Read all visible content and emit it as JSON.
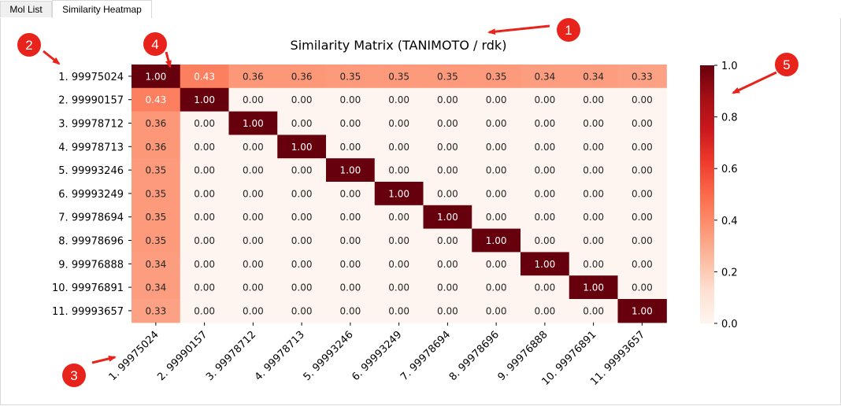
{
  "tabs": [
    {
      "label": "Mol List",
      "active": false
    },
    {
      "label": "Similarity Heatmap",
      "active": true
    }
  ],
  "colors": {
    "annotation": "#e8231b",
    "low": "#fff5f0",
    "high": "#67000d"
  },
  "annotations": [
    "1",
    "2",
    "3",
    "4",
    "5"
  ],
  "chart_data": {
    "type": "heatmap",
    "title": "Similarity Matrix (TANIMOTO / rdk)",
    "row_labels": [
      "1. 99975024",
      "2. 99990157",
      "3. 99978712",
      "4. 99978713",
      "5. 99993246",
      "6. 99993249",
      "7. 99978694",
      "8. 99978696",
      "9. 99976888",
      "10. 99976891",
      "11. 99993657"
    ],
    "col_labels": [
      "1. 99975024",
      "2. 99990157",
      "3. 99978712",
      "4. 99978713",
      "5. 99993246",
      "6. 99993249",
      "7. 99978694",
      "8. 99978696",
      "9. 99976888",
      "10. 99976891",
      "11. 99993657"
    ],
    "values": [
      [
        1.0,
        0.43,
        0.36,
        0.36,
        0.35,
        0.35,
        0.35,
        0.35,
        0.34,
        0.34,
        0.33
      ],
      [
        0.43,
        1.0,
        0.0,
        0.0,
        0.0,
        0.0,
        0.0,
        0.0,
        0.0,
        0.0,
        0.0
      ],
      [
        0.36,
        0.0,
        1.0,
        0.0,
        0.0,
        0.0,
        0.0,
        0.0,
        0.0,
        0.0,
        0.0
      ],
      [
        0.36,
        0.0,
        0.0,
        1.0,
        0.0,
        0.0,
        0.0,
        0.0,
        0.0,
        0.0,
        0.0
      ],
      [
        0.35,
        0.0,
        0.0,
        0.0,
        1.0,
        0.0,
        0.0,
        0.0,
        0.0,
        0.0,
        0.0
      ],
      [
        0.35,
        0.0,
        0.0,
        0.0,
        0.0,
        1.0,
        0.0,
        0.0,
        0.0,
        0.0,
        0.0
      ],
      [
        0.35,
        0.0,
        0.0,
        0.0,
        0.0,
        0.0,
        1.0,
        0.0,
        0.0,
        0.0,
        0.0
      ],
      [
        0.35,
        0.0,
        0.0,
        0.0,
        0.0,
        0.0,
        0.0,
        1.0,
        0.0,
        0.0,
        0.0
      ],
      [
        0.34,
        0.0,
        0.0,
        0.0,
        0.0,
        0.0,
        0.0,
        0.0,
        1.0,
        0.0,
        0.0
      ],
      [
        0.34,
        0.0,
        0.0,
        0.0,
        0.0,
        0.0,
        0.0,
        0.0,
        0.0,
        1.0,
        0.0
      ],
      [
        0.33,
        0.0,
        0.0,
        0.0,
        0.0,
        0.0,
        0.0,
        0.0,
        0.0,
        0.0,
        1.0
      ]
    ],
    "colorbar": {
      "range": [
        0.0,
        1.0
      ],
      "ticks": [
        "0.0",
        "0.2",
        "0.4",
        "0.6",
        "0.8",
        "1.0"
      ],
      "colormap": "Reds"
    }
  }
}
